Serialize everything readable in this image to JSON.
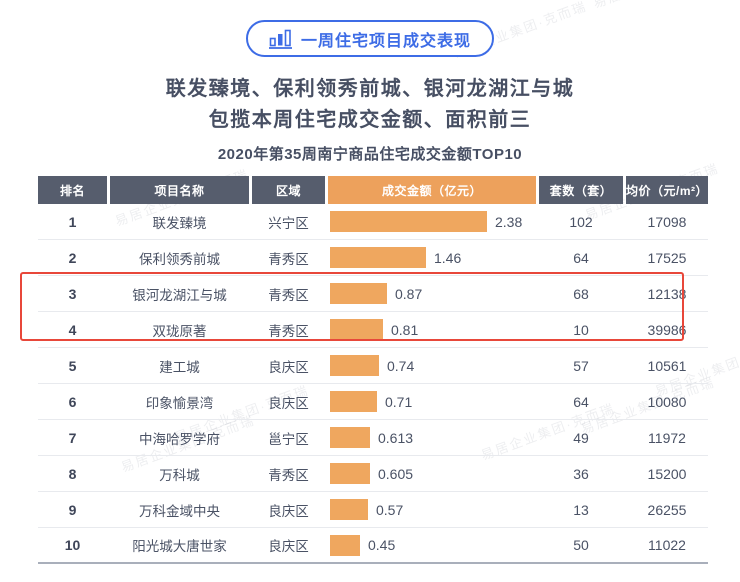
{
  "page": {
    "badge_label": "一周住宅项目成交表现",
    "title_line1": "联发臻境、保利领秀前城、银河龙湖江与城",
    "title_line2": "包揽本周住宅成交金额、面积前三",
    "subtitle": "2020年第35周南宁商品住宅成交金额TOP10",
    "watermark_text": "易居企业集团·克而瑞"
  },
  "colors": {
    "accent_blue": "#3d6ce6",
    "header_dark": "#565d6d",
    "header_orange": "#eda15c",
    "bar_orange": "#efa75f",
    "highlight_red": "#e8473a",
    "text_dark": "#474f63"
  },
  "chart_data": {
    "type": "bar",
    "orientation": "horizontal",
    "title": "2020年第35周南宁商品住宅成交金额TOP10",
    "columns": [
      "排名",
      "项目名称",
      "区域",
      "成交金额（亿元）",
      "套数（套）",
      "均价（元/m²）"
    ],
    "xlim": [
      0,
      2.38
    ],
    "highlighted_ranks": [
      3,
      4
    ],
    "rows": [
      {
        "rank": "1",
        "name": "联发臻境",
        "district": "兴宁区",
        "amount": 2.38,
        "amount_label": "2.38",
        "units": "102",
        "avg_price": "17098"
      },
      {
        "rank": "2",
        "name": "保利领秀前城",
        "district": "青秀区",
        "amount": 1.46,
        "amount_label": "1.46",
        "units": "64",
        "avg_price": "17525"
      },
      {
        "rank": "3",
        "name": "银河龙湖江与城",
        "district": "青秀区",
        "amount": 0.87,
        "amount_label": "0.87",
        "units": "68",
        "avg_price": "12138"
      },
      {
        "rank": "4",
        "name": "双珑原著",
        "district": "青秀区",
        "amount": 0.81,
        "amount_label": "0.81",
        "units": "10",
        "avg_price": "39986"
      },
      {
        "rank": "5",
        "name": "建工城",
        "district": "良庆区",
        "amount": 0.74,
        "amount_label": "0.74",
        "units": "57",
        "avg_price": "10561"
      },
      {
        "rank": "6",
        "name": "印象愉景湾",
        "district": "良庆区",
        "amount": 0.71,
        "amount_label": "0.71",
        "units": "64",
        "avg_price": "10080"
      },
      {
        "rank": "7",
        "name": "中海哈罗学府",
        "district": "邕宁区",
        "amount": 0.613,
        "amount_label": "0.613",
        "units": "49",
        "avg_price": "11972"
      },
      {
        "rank": "8",
        "name": "万科城",
        "district": "青秀区",
        "amount": 0.605,
        "amount_label": "0.605",
        "units": "36",
        "avg_price": "15200"
      },
      {
        "rank": "9",
        "name": "万科金域中央",
        "district": "良庆区",
        "amount": 0.57,
        "amount_label": "0.57",
        "units": "13",
        "avg_price": "26255"
      },
      {
        "rank": "10",
        "name": "阳光城大唐世家",
        "district": "良庆区",
        "amount": 0.45,
        "amount_label": "0.45",
        "units": "50",
        "avg_price": "11022"
      }
    ]
  }
}
